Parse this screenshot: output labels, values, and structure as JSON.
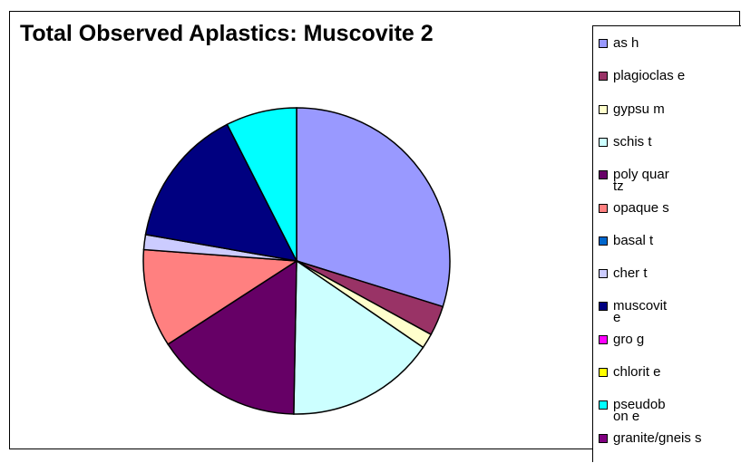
{
  "chart_data": {
    "type": "pie",
    "title": "Total Observed Aplastics: Muscovite 2",
    "categories": [
      "as h",
      "plagioclas e",
      "gypsu m",
      "schis t",
      "poly quartz",
      "opaque s",
      "basal t",
      "cher t",
      "muscovit e",
      "gro g",
      "chlorit e",
      "pseudobon e",
      "granite/gneis s"
    ],
    "values": [
      30.3,
      3.2,
      1.6,
      16.0,
      15.8,
      10.5,
      0,
      1.6,
      15.0,
      0,
      0,
      7.6,
      0
    ],
    "colors": [
      "#9999FF",
      "#993366",
      "#FFFFCC",
      "#CCFFFF",
      "#660066",
      "#FF8080",
      "#0066CC",
      "#CCCCFF",
      "#000080",
      "#FF00FF",
      "#FFFF00",
      "#00FFFF",
      "#800080"
    ],
    "legend_position": "right",
    "start_angle_deg": 0,
    "direction": "clockwise"
  }
}
